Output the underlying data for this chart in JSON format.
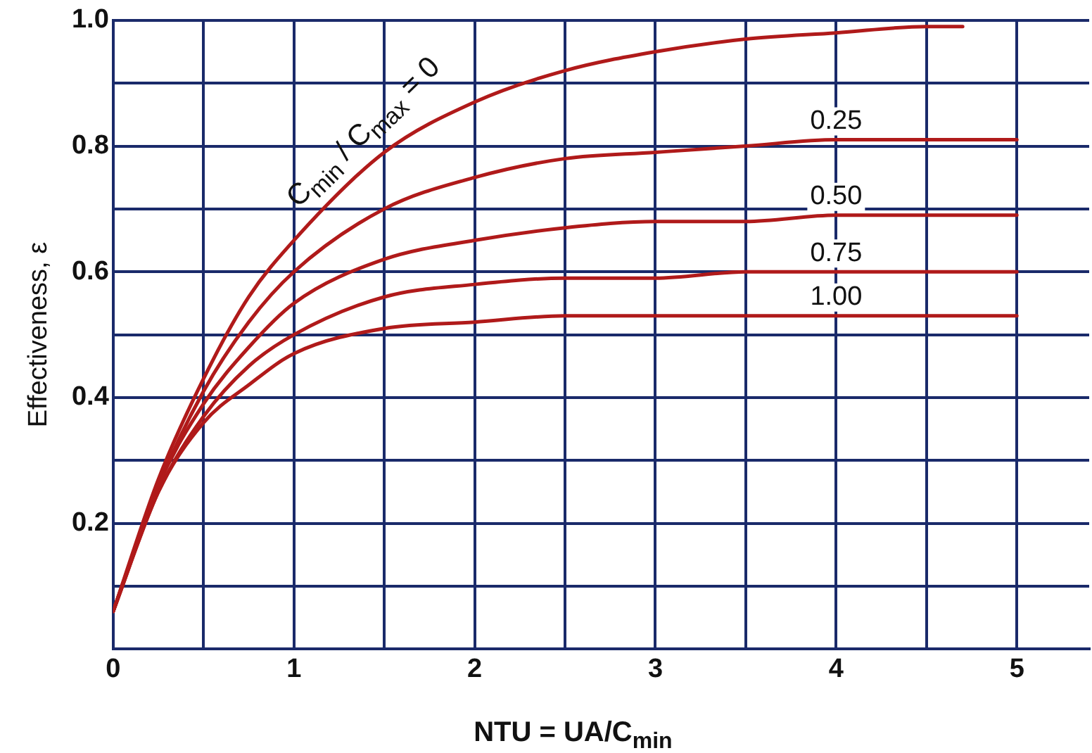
{
  "chart_data": {
    "type": "line",
    "xlabel": "NTU = UA/C$_{min}$",
    "ylabel": "Effectiveness, ε",
    "x": [
      0,
      0.25,
      0.5,
      0.75,
      1,
      1.5,
      2,
      2.5,
      3,
      3.5,
      4,
      4.5,
      5
    ],
    "series": [
      {
        "name": "C$_{min}$ / C$_{max}$ = 0",
        "color": "#b01a1a",
        "x": [
          0,
          0.25,
          0.5,
          0.75,
          1,
          1.5,
          2,
          2.5,
          3,
          3.5,
          4,
          4.5,
          4.7
        ],
        "values": [
          0.06,
          0.27,
          0.43,
          0.56,
          0.65,
          0.79,
          0.87,
          0.92,
          0.95,
          0.97,
          0.98,
          0.99,
          0.99
        ]
      },
      {
        "name": "0.25",
        "color": "#b01a1a",
        "values": [
          0.06,
          0.26,
          0.41,
          0.52,
          0.6,
          0.7,
          0.75,
          0.78,
          0.79,
          0.8,
          0.81,
          0.81,
          0.81
        ]
      },
      {
        "name": "0.50",
        "color": "#b01a1a",
        "values": [
          0.06,
          0.26,
          0.39,
          0.48,
          0.55,
          0.62,
          0.65,
          0.67,
          0.68,
          0.68,
          0.69,
          0.69,
          0.69
        ]
      },
      {
        "name": "0.75",
        "color": "#b01a1a",
        "values": [
          0.06,
          0.25,
          0.37,
          0.45,
          0.5,
          0.56,
          0.58,
          0.59,
          0.59,
          0.6,
          0.6,
          0.6,
          0.6
        ]
      },
      {
        "name": "1.00",
        "color": "#b01a1a",
        "values": [
          0.06,
          0.25,
          0.36,
          0.42,
          0.47,
          0.51,
          0.52,
          0.53,
          0.53,
          0.53,
          0.53,
          0.53,
          0.53
        ]
      }
    ],
    "xlim": [
      0,
      5.4
    ],
    "xticks": [
      0,
      {
        "value": 0.5,
        "label": null
      },
      1,
      {
        "value": 1.5,
        "label": null
      },
      2,
      {
        "value": 2.5,
        "label": null
      },
      3,
      {
        "value": 3.5,
        "label": null
      },
      4,
      {
        "value": 4.5,
        "label": null
      },
      5
    ],
    "ylim": [
      0,
      1
    ],
    "yticks": [
      {
        "value": 0,
        "label": null
      },
      {
        "value": 0.1,
        "label": null
      },
      0.2,
      {
        "value": 0.3,
        "label": null
      },
      0.4,
      {
        "value": 0.5,
        "label": null
      },
      0.6,
      {
        "value": 0.7,
        "label": null
      },
      0.8,
      {
        "value": 0.9,
        "label": null
      },
      {
        "value": 1,
        "label": "1.0"
      }
    ],
    "grid": true,
    "legend": false,
    "marker": "none",
    "line_style": "solid"
  }
}
